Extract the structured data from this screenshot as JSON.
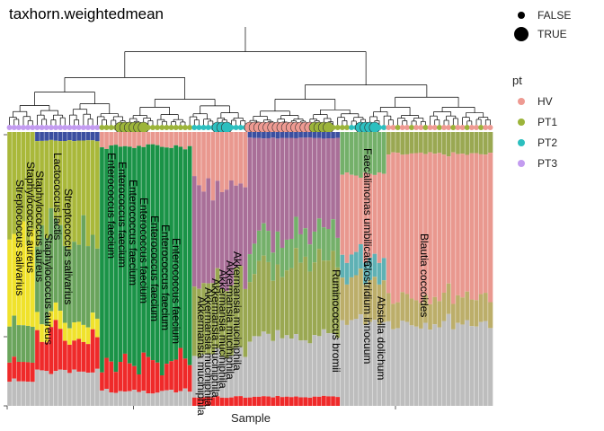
{
  "chart_data": {
    "type": "bar",
    "title": "taxhorn.weightedmean",
    "xlabel": "Sample",
    "ylabel": "",
    "n_samples": 105,
    "size_legend": {
      "title": "",
      "entries": [
        "FALSE",
        "TRUE"
      ]
    },
    "color_legend": {
      "title": "pt",
      "entries": [
        {
          "name": "HV",
          "color": "#ee9a92"
        },
        {
          "name": "PT1",
          "color": "#9cb43a"
        },
        {
          "name": "PT2",
          "color": "#2cbfbf"
        },
        {
          "name": "PT3",
          "color": "#c39cf0"
        }
      ]
    },
    "taxa_colors": {
      "Blautia coccoides": "#e9988f",
      "Enterococcus faecium": "#1a9347",
      "Akkermansia muciniphila": "#a96f98",
      "Faecalimonas umbilicata": "#74b06a",
      "Ruminococcus bromii": "#9aa852",
      "Streptococcus salivarius": "#a9b83a",
      "Staphylococcus aureus": "#f0e22c",
      "Lactococcus lactis": "#6aa45c",
      "Absiella dolichum": "#bcae6a",
      "Clostridium innocuum": "#5fb1b4",
      "Escherichia coli": "#ef2a2a",
      "Bacteroides": "#3b4fa0",
      "other": "#bdbdbd"
    },
    "labels": [
      "Blautia coccoides",
      "Faecalimonas umbilicata",
      "Clostridium innocuum",
      "Absiella dolichum",
      "Ruminococcus bromii",
      "Akkermansia muciniphila",
      "Akkermansia muciniphila",
      "Akkermansia muciniphila",
      "Akkermansia muciniphila",
      "Akkermansia muciniphila",
      "Akkermansia muciniphila",
      "Enterococcus faecium",
      "Enterococcus faecium",
      "Enterococcus faecium",
      "Enterococcus faecium",
      "Enterococcus faecium",
      "Enterococcus faecium",
      "Enterococcus faecium",
      "Streptococcus salivarius",
      "Lactococcus lactis",
      "Streptococcus salivarius",
      "Staphylococcus aureus",
      "Staphylococcus aureus",
      "Staphylococcus aureus"
    ]
  }
}
